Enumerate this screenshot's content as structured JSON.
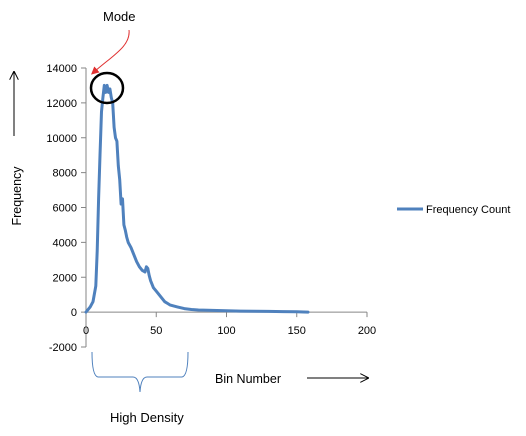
{
  "chart_data": {
    "type": "line",
    "title": "",
    "xlabel": "Bin Number",
    "ylabel": "Frequency",
    "xlim": [
      0,
      200
    ],
    "ylim": [
      -2000,
      14000
    ],
    "x_ticks": [
      0,
      50,
      100,
      150,
      200
    ],
    "y_ticks": [
      -2000,
      0,
      2000,
      4000,
      6000,
      8000,
      10000,
      12000,
      14000
    ],
    "x_tick_labels": [
      "0",
      "50",
      "100",
      "150",
      "200"
    ],
    "y_tick_labels": [
      "-2000",
      "0",
      "2000",
      "4000",
      "6000",
      "8000",
      "10000",
      "12000",
      "14000"
    ],
    "grid": false,
    "legend_position": "right",
    "series": [
      {
        "name": "Frequency Count",
        "color": "#4F81BD",
        "x": [
          0,
          3,
          5,
          7,
          8,
          9,
          10,
          11,
          12,
          13,
          14,
          15,
          16,
          17,
          18,
          19,
          20,
          21,
          22,
          23,
          24,
          25,
          26,
          27,
          28,
          29,
          30,
          32,
          34,
          36,
          38,
          40,
          42,
          43,
          44,
          45,
          46,
          48,
          50,
          52,
          54,
          56,
          58,
          60,
          65,
          70,
          75,
          80,
          90,
          100,
          110,
          120,
          130,
          140,
          150,
          155,
          158
        ],
        "y": [
          0,
          300,
          600,
          1500,
          3500,
          6500,
          9000,
          11500,
          12300,
          13000,
          12600,
          13000,
          12600,
          12800,
          12300,
          12000,
          10600,
          10000,
          9800,
          8400,
          7600,
          6200,
          6500,
          5000,
          4700,
          4300,
          4000,
          3700,
          3300,
          2900,
          2600,
          2400,
          2300,
          2600,
          2500,
          2100,
          1800,
          1400,
          1200,
          1000,
          800,
          600,
          500,
          400,
          300,
          200,
          150,
          120,
          100,
          80,
          60,
          50,
          40,
          30,
          20,
          10,
          0
        ]
      }
    ]
  },
  "annotations": {
    "mode_label": "Mode",
    "high_density_label": "High Density"
  }
}
